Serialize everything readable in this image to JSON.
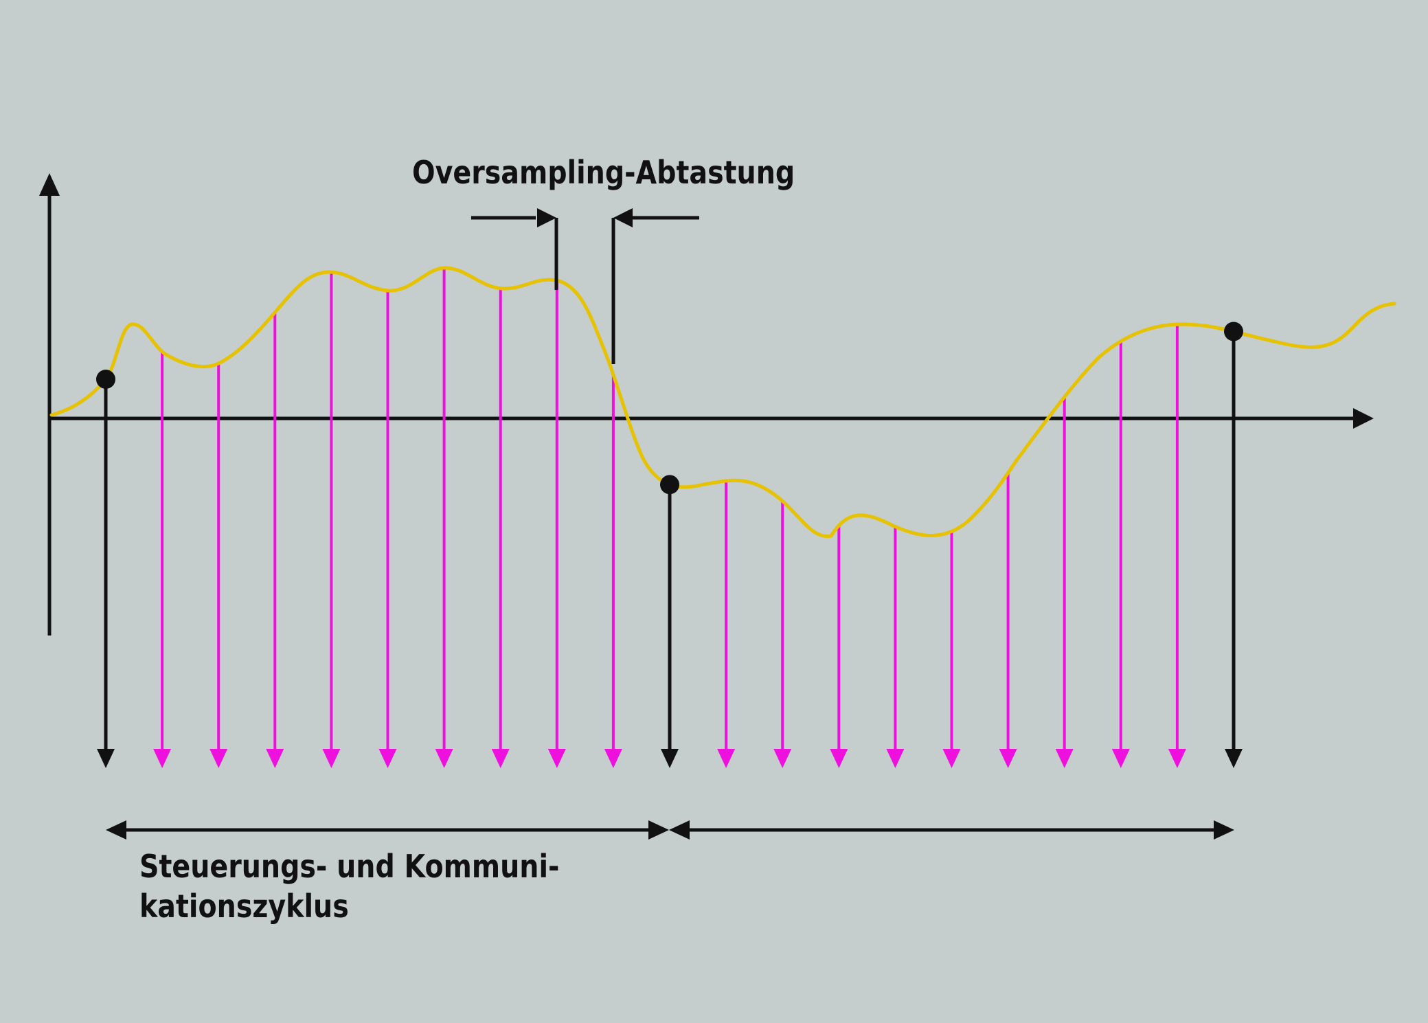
{
  "labels": {
    "oversampling": "Oversampling-Abtastung",
    "cycle_line1": "Steuerungs- und Kommuni-",
    "cycle_line2": "kationszyklus"
  },
  "colors": {
    "background": "#c5cdcd",
    "signal": "#e6c200",
    "oversampling_arrows": "#ee11dd",
    "cycle_arrows": "#111111",
    "axes": "#111111"
  },
  "diagram": {
    "cycle_sample_indices": [
      0,
      10,
      20
    ],
    "sample_count": 21,
    "samples_per_cycle": 10
  }
}
